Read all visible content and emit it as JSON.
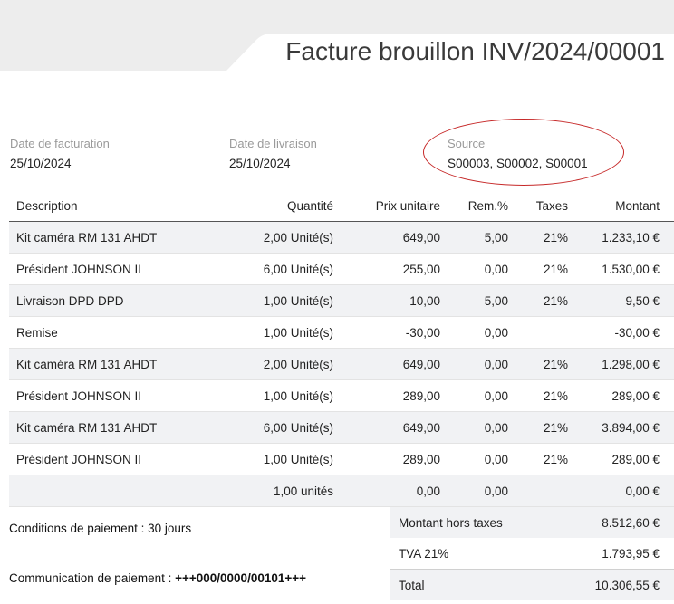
{
  "document": {
    "title": "Facture brouillon INV/2024/00001"
  },
  "info": {
    "invoice_date_label": "Date de facturation",
    "invoice_date": "25/10/2024",
    "delivery_date_label": "Date de livraison",
    "delivery_date": "25/10/2024",
    "source_label": "Source",
    "source_value": "S00003, S00002, S00001",
    "highlight_color": "#c62828"
  },
  "table": {
    "headers": {
      "description": "Description",
      "quantity": "Quantité",
      "unit_price": "Prix unitaire",
      "discount": "Rem.%",
      "taxes": "Taxes",
      "amount": "Montant"
    },
    "rows": [
      {
        "description": "Kit caméra RM 131 AHDT",
        "quantity": "2,00 Unité(s)",
        "unit_price": "649,00",
        "discount": "5,00",
        "taxes": "21%",
        "amount": "1.233,10 €"
      },
      {
        "description": "Président JOHNSON II",
        "quantity": "6,00 Unité(s)",
        "unit_price": "255,00",
        "discount": "0,00",
        "taxes": "21%",
        "amount": "1.530,00 €"
      },
      {
        "description": "Livraison DPD DPD",
        "quantity": "1,00 Unité(s)",
        "unit_price": "10,00",
        "discount": "5,00",
        "taxes": "21%",
        "amount": "9,50 €"
      },
      {
        "description": "Remise",
        "quantity": "1,00 Unité(s)",
        "unit_price": "-30,00",
        "discount": "0,00",
        "taxes": "",
        "amount": "-30,00 €"
      },
      {
        "description": "Kit caméra RM 131 AHDT",
        "quantity": "2,00 Unité(s)",
        "unit_price": "649,00",
        "discount": "0,00",
        "taxes": "21%",
        "amount": "1.298,00 €"
      },
      {
        "description": "Président JOHNSON II",
        "quantity": "1,00 Unité(s)",
        "unit_price": "289,00",
        "discount": "0,00",
        "taxes": "21%",
        "amount": "289,00 €"
      },
      {
        "description": "Kit caméra RM 131 AHDT",
        "quantity": "6,00 Unité(s)",
        "unit_price": "649,00",
        "discount": "0,00",
        "taxes": "21%",
        "amount": "3.894,00 €"
      },
      {
        "description": "Président JOHNSON II",
        "quantity": "1,00 Unité(s)",
        "unit_price": "289,00",
        "discount": "0,00",
        "taxes": "21%",
        "amount": "289,00 €"
      },
      {
        "description": "",
        "quantity": "1,00 unités",
        "unit_price": "0,00",
        "discount": "0,00",
        "taxes": "",
        "amount": "0,00 €"
      }
    ]
  },
  "payment": {
    "terms_text": "Conditions de paiement : 30 jours",
    "communication_label": "Communication de paiement :",
    "communication_value": "+++000/0000/00101+++"
  },
  "totals": {
    "subtotal_label": "Montant hors taxes",
    "subtotal_value": "8.512,60 €",
    "tax_label": "TVA 21%",
    "tax_value": "1.793,95 €",
    "total_label": "Total",
    "total_value": "10.306,55 €"
  }
}
